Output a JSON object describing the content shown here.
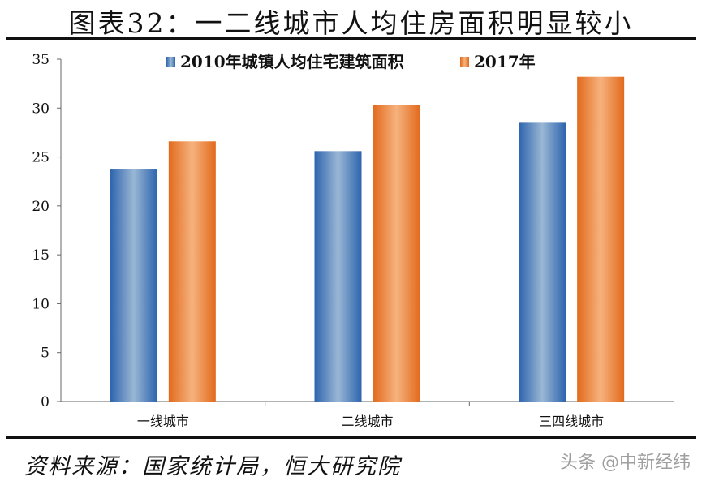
{
  "title": "图表32：一二线城市人均住房面积明显较小",
  "source": "资料来源：国家统计局，恒大研究院",
  "watermark": "头条 @中新经纬",
  "chart_data": {
    "type": "bar",
    "title": "",
    "categories": [
      "一线城市",
      "二线城市",
      "三四线城市"
    ],
    "series": [
      {
        "name": "2010年城镇人均住宅建筑面积",
        "values": [
          23.8,
          25.6,
          28.5
        ],
        "color": "#3a73b8"
      },
      {
        "name": "2017年",
        "values": [
          26.6,
          30.3,
          33.2
        ],
        "color": "#e8772e"
      }
    ],
    "ylim": [
      0,
      35
    ],
    "yticks": [
      0,
      5,
      10,
      15,
      20,
      25,
      30,
      35
    ],
    "grid": false,
    "legend": "top"
  }
}
